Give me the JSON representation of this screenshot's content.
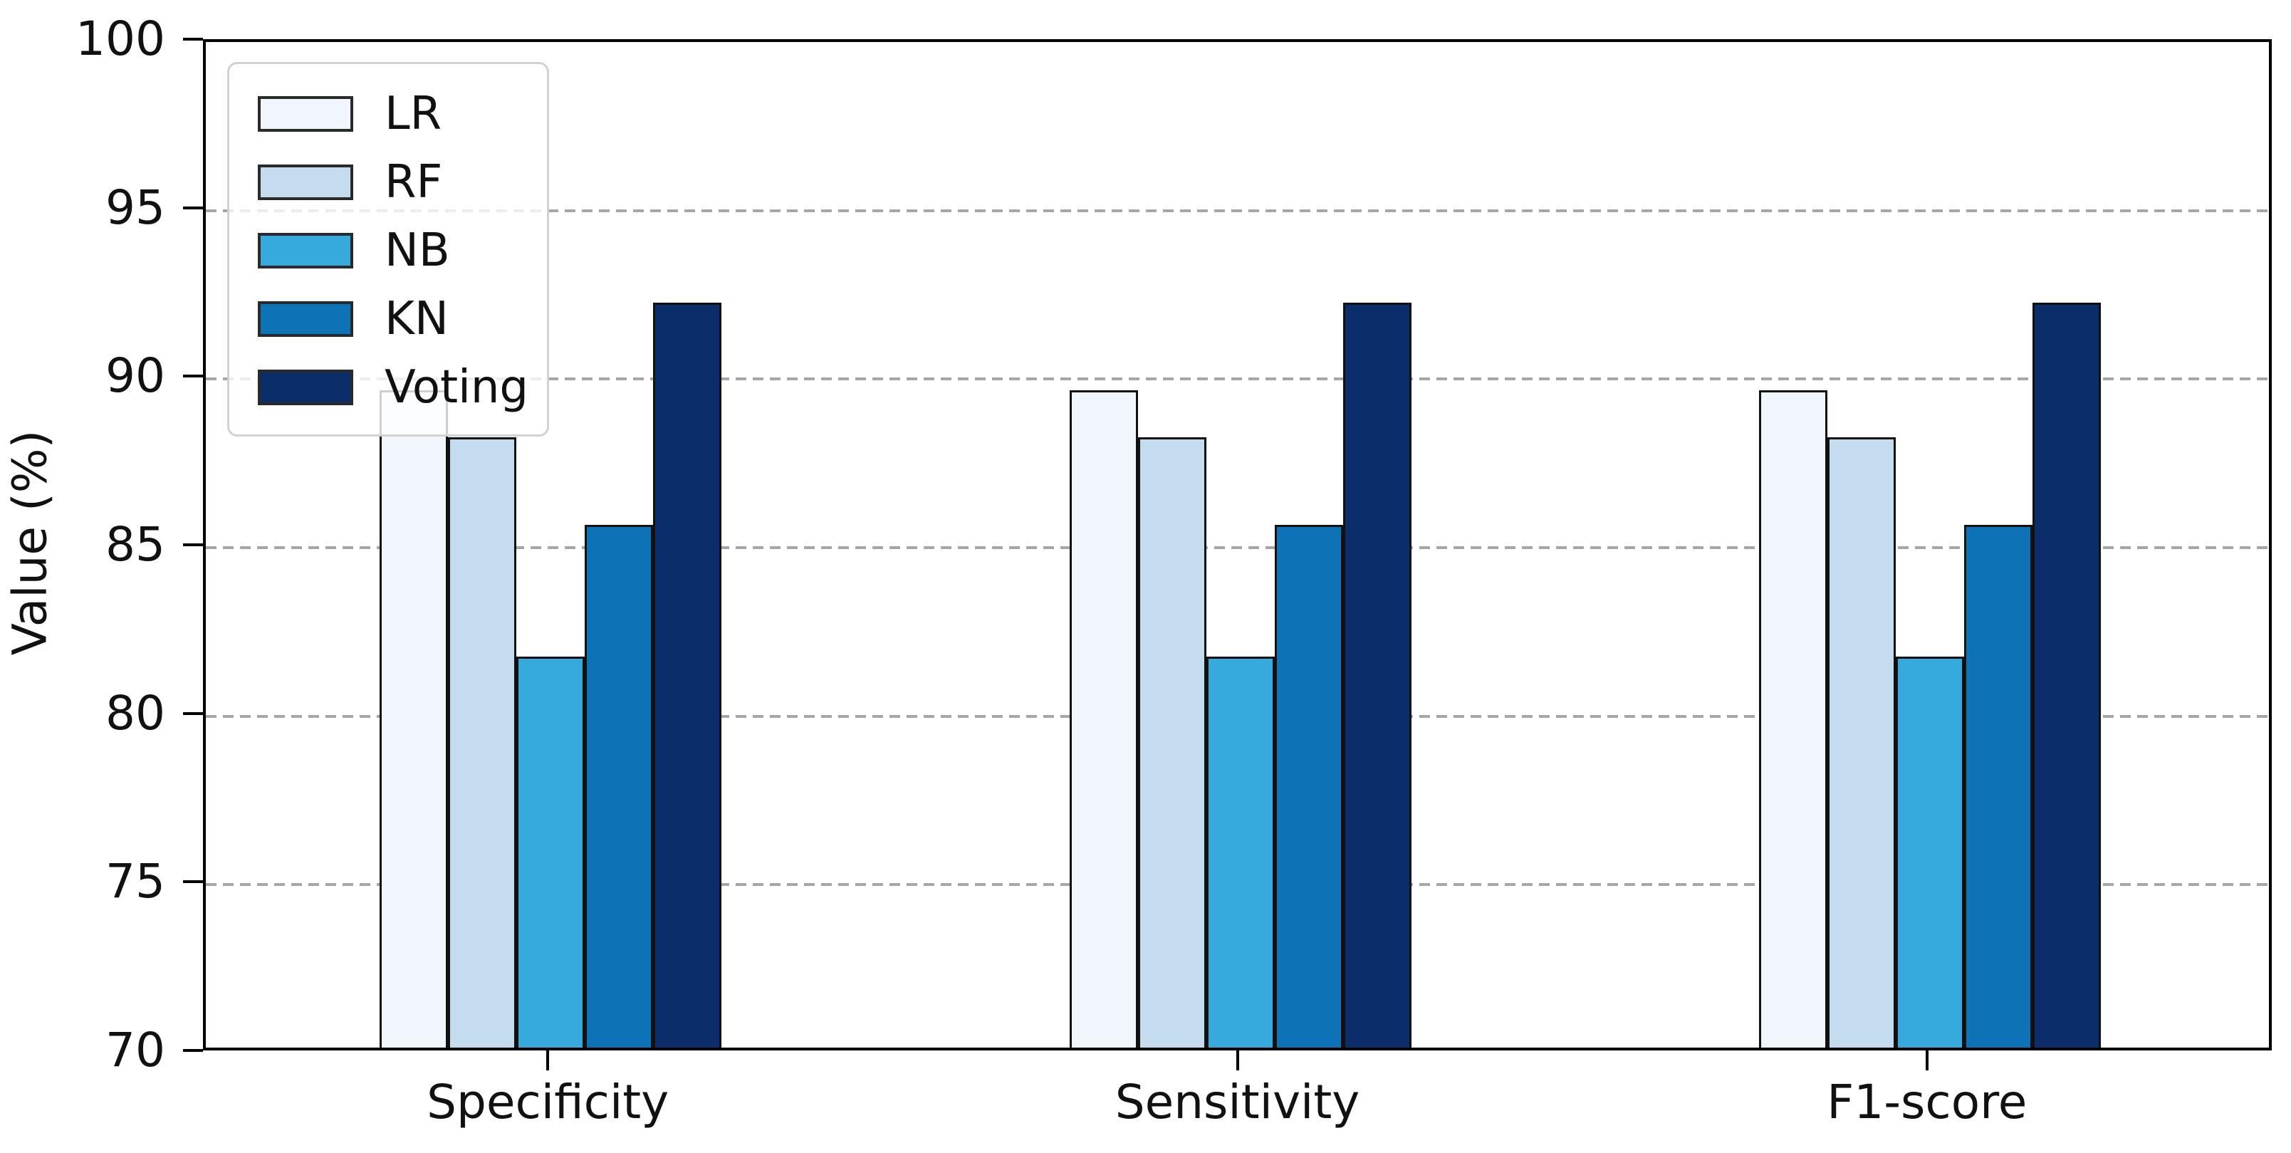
{
  "chart_data": {
    "type": "bar",
    "title": "",
    "xlabel": "",
    "ylabel": "Value (%)",
    "ylim": [
      70,
      100
    ],
    "yticks": [
      70,
      75,
      80,
      85,
      90,
      95,
      100
    ],
    "gridlines": [
      75,
      80,
      85,
      90,
      95
    ],
    "grid_style": "horizontal dashed gray",
    "legend_position": "upper left",
    "categories": [
      "Specificity",
      "Sensitivity",
      "F1-score"
    ],
    "series": [
      {
        "name": "LR",
        "color": "#f0f6fc",
        "values": [
          89.5,
          89.5,
          89.5
        ]
      },
      {
        "name": "RF",
        "color": "#c5dcee",
        "values": [
          88.1,
          88.1,
          88.1
        ]
      },
      {
        "name": "NB",
        "color": "#36aadd",
        "values": [
          81.6,
          81.6,
          81.6
        ]
      },
      {
        "name": "KN",
        "color": "#0e73b6",
        "values": [
          85.5,
          85.5,
          85.5
        ]
      },
      {
        "name": "Voting",
        "color": "#0b2e6b",
        "values": [
          92.1,
          92.1,
          92.1
        ]
      }
    ],
    "bar_edge_color": "#111111",
    "axis_color": "#000000",
    "grid_color": "#a6a6a6"
  }
}
